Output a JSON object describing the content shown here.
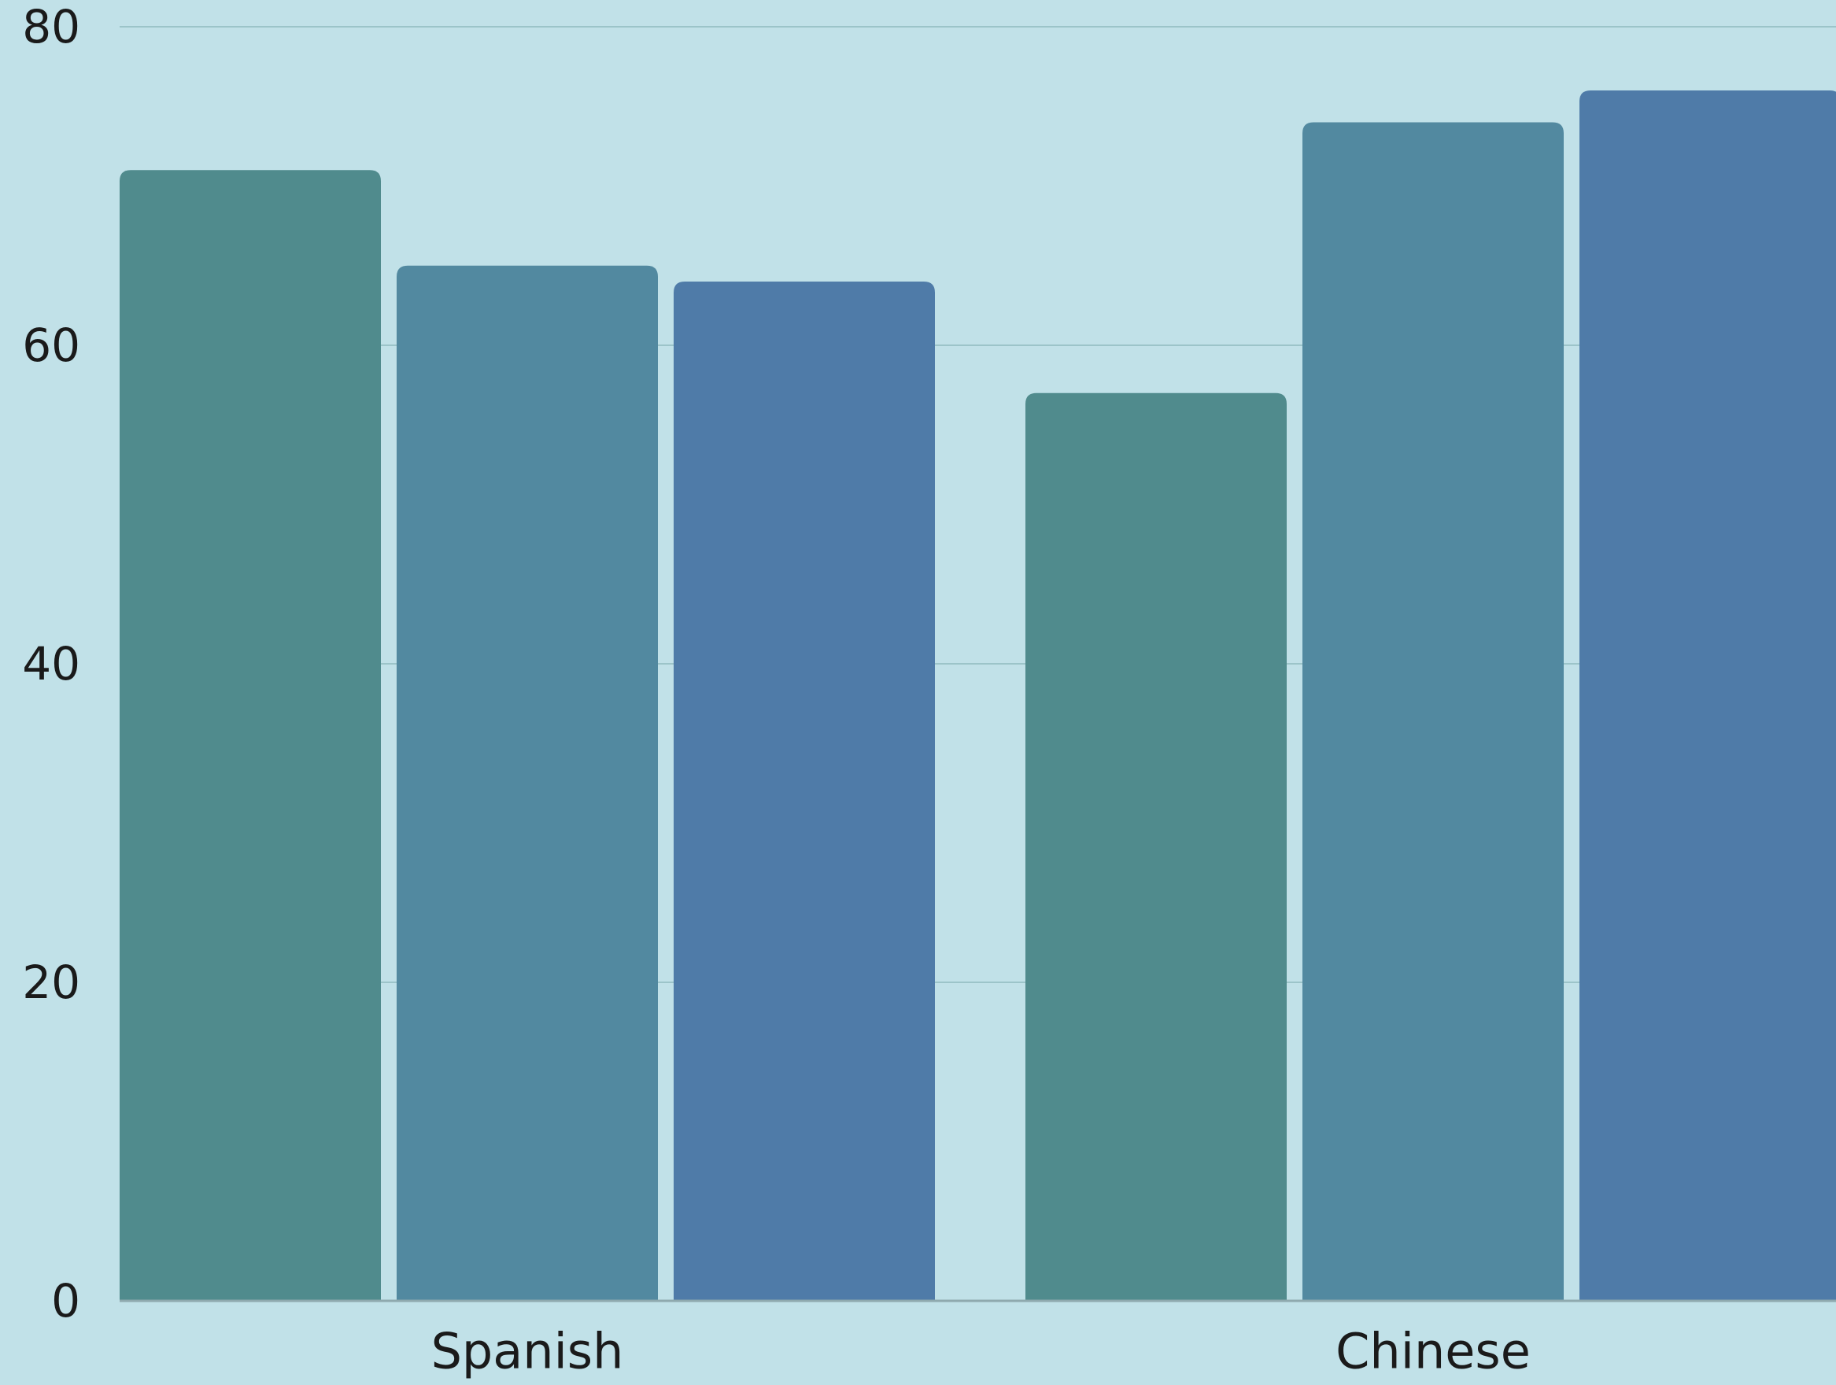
{
  "chart_data": {
    "type": "bar",
    "title": "",
    "xlabel": "",
    "ylabel": "",
    "ylim": [
      0,
      80
    ],
    "yticks": [
      0,
      20,
      40,
      60,
      80
    ],
    "categories": [
      "Spanish",
      "Chinese"
    ],
    "series": [
      {
        "values": [
          71,
          57
        ],
        "color": "#508b8d"
      },
      {
        "values": [
          65,
          74
        ],
        "color": "#5289a0"
      },
      {
        "values": [
          64,
          76
        ],
        "color": "#4f7ba8"
      }
    ],
    "grid": true,
    "legend": "none"
  },
  "colors": {
    "background": "#c1e1e8",
    "gridline": "#9cc4c9",
    "baseline": "#8fa9ae"
  }
}
